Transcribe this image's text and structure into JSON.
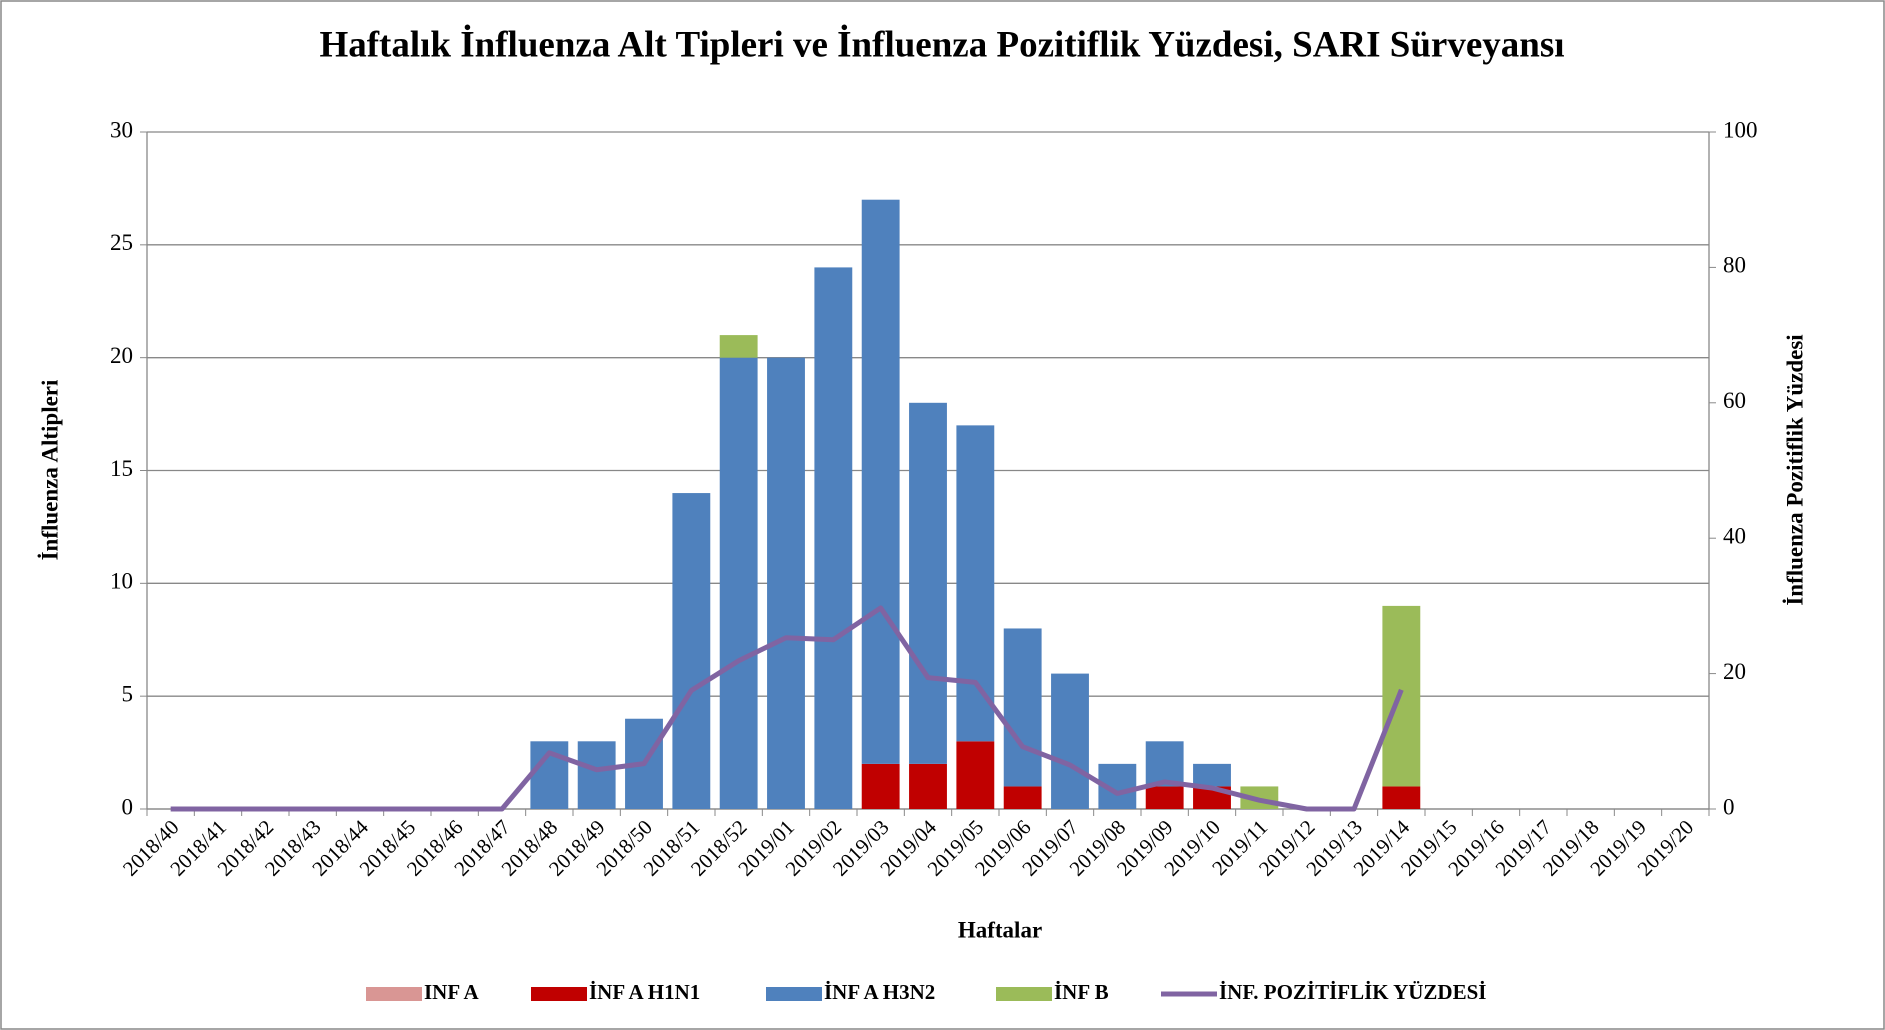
{
  "chart_data": {
    "type": "bar",
    "title": "Haftalık İnfluenza Alt Tipleri ve İnfluenza Pozitiflik Yüzdesi, SARI Sürveyansı",
    "x_label": "Haftalar",
    "y_label": "İnfluenza Altipleri",
    "y2_label": "İnfluenza Pozitiflik Yüzdesi",
    "categories": [
      "2018/40",
      "2018/41",
      "2018/42",
      "2018/43",
      "2018/44",
      "2018/45",
      "2018/46",
      "2018/47",
      "2018/48",
      "2018/49",
      "2018/50",
      "2018/51",
      "2018/52",
      "2019/01",
      "2019/02",
      "2019/03",
      "2019/04",
      "2019/05",
      "2019/06",
      "2019/07",
      "2019/08",
      "2019/09",
      "2019/10",
      "2019/11",
      "2019/12",
      "2019/13",
      "2019/14",
      "2019/15",
      "2019/16",
      "2019/17",
      "2019/18",
      "2019/19",
      "2019/20"
    ],
    "stacked": true,
    "grid": true,
    "legend": "bottom",
    "series": [
      {
        "name": "INF A",
        "color": "#d99694",
        "values": [
          0,
          0,
          0,
          0,
          0,
          0,
          0,
          0,
          0,
          0,
          0,
          0,
          0,
          0,
          0,
          0,
          0,
          0,
          0,
          0,
          0,
          0,
          0,
          0,
          0,
          0,
          0,
          null,
          null,
          null,
          null,
          null,
          null
        ]
      },
      {
        "name": "İNF A H1N1",
        "color": "#c00000",
        "values": [
          0,
          0,
          0,
          0,
          0,
          0,
          0,
          0,
          0,
          0,
          0,
          0,
          0,
          0,
          0,
          2,
          2,
          3,
          1,
          0,
          0,
          1,
          1,
          0,
          0,
          0,
          1,
          null,
          null,
          null,
          null,
          null,
          null
        ]
      },
      {
        "name": "İNF A H3N2",
        "color": "#4f81bd",
        "values": [
          0,
          0,
          0,
          0,
          0,
          0,
          0,
          0,
          3,
          3,
          4,
          14,
          20,
          20,
          24,
          25,
          16,
          14,
          7,
          6,
          2,
          2,
          1,
          0,
          0,
          0,
          0,
          null,
          null,
          null,
          null,
          null,
          null
        ]
      },
      {
        "name": "İNF B",
        "color": "#9bbb59",
        "values": [
          0,
          0,
          0,
          0,
          0,
          0,
          0,
          0,
          0,
          0,
          0,
          0,
          1,
          0,
          0,
          0,
          0,
          0,
          0,
          0,
          0,
          0,
          0,
          1,
          0,
          0,
          8,
          null,
          null,
          null,
          null,
          null,
          null
        ]
      },
      {
        "name": "İNF. POZİTİFLİK YÜZDESİ",
        "color": "#8064a2",
        "type": "line",
        "axis": "y2",
        "values": [
          0,
          0,
          0,
          0,
          0,
          0,
          0,
          0,
          8.3,
          5.8,
          6.7,
          17.5,
          21.9,
          25.3,
          25.0,
          29.7,
          19.4,
          18.7,
          9.2,
          6.5,
          2.3,
          4.0,
          3.1,
          1.3,
          0,
          0,
          17.6,
          null,
          null,
          null,
          null,
          null,
          null
        ]
      }
    ],
    "ylim": [
      0,
      30
    ],
    "yticks": [
      0,
      5,
      10,
      15,
      20,
      25,
      30
    ],
    "y2lim": [
      0,
      100
    ],
    "y2ticks": [
      0,
      20,
      40,
      60,
      80,
      100
    ]
  }
}
